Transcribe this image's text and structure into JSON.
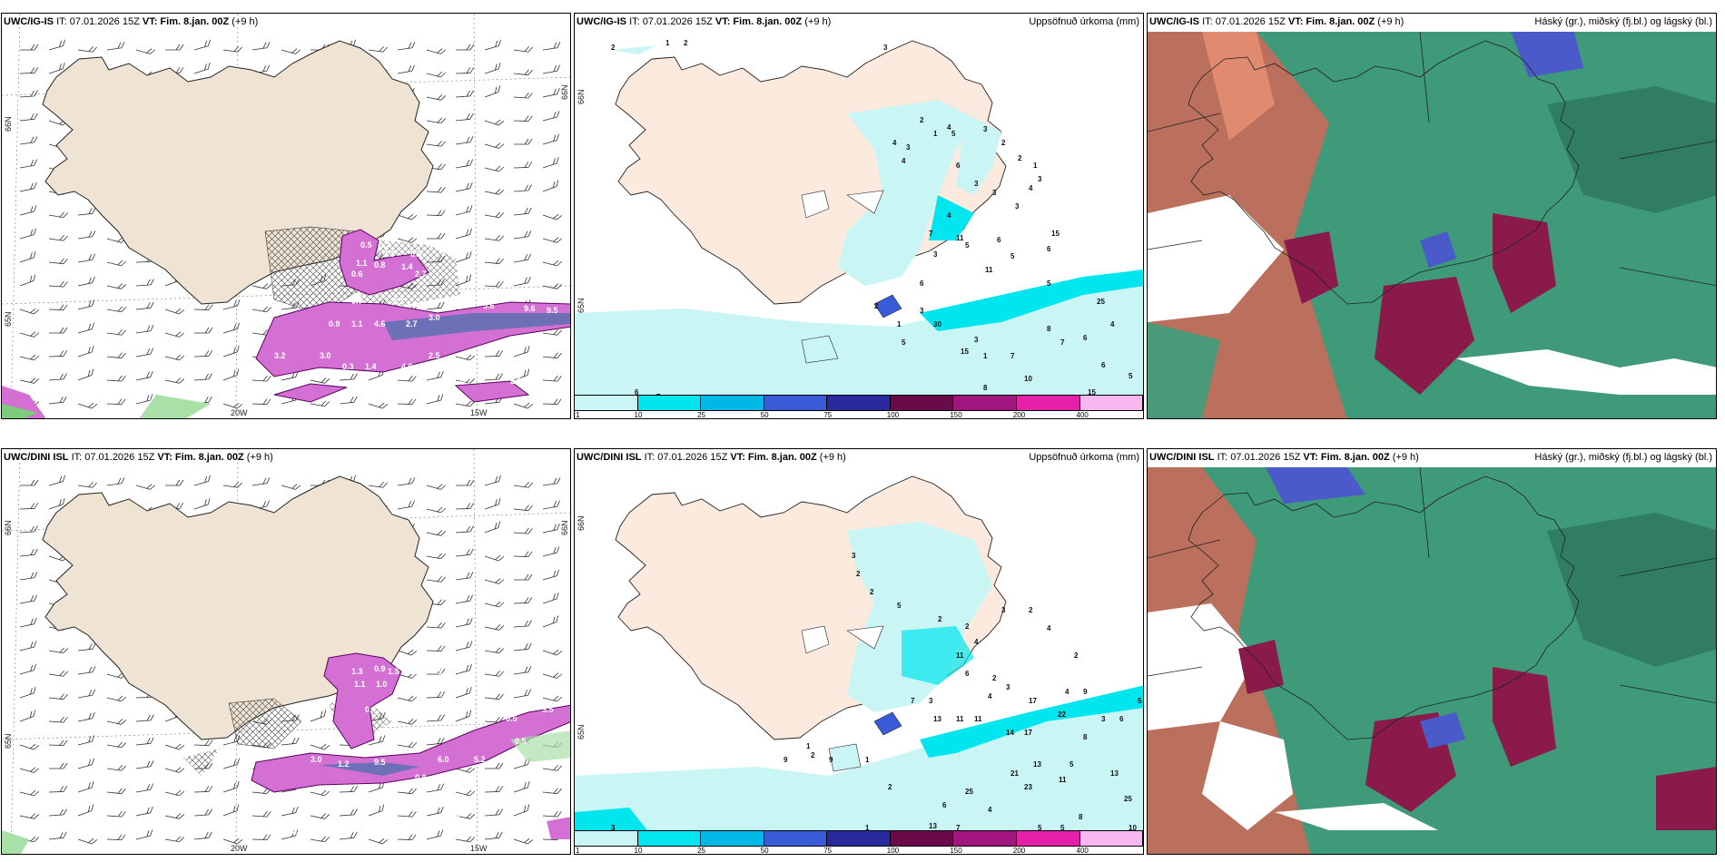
{
  "rows": [
    {
      "id": "top",
      "panels": [
        {
          "kind": "wind",
          "title_left": "UWC/IG-IS",
          "it": "IT: 07.01.2026 15Z",
          "vt_label": "VT:",
          "vt_value": "Fim. 8.jan. 00Z",
          "lead": "(+9 h)",
          "right_title": "",
          "lon_labels": [
            "20W",
            "15W"
          ],
          "lat_labels": [
            "66N",
            "65N"
          ],
          "values": [
            "0.5",
            "0.7",
            "2.3",
            "0.9",
            "1.1",
            "0.8",
            "1.4",
            "0.6",
            "2.7",
            "0.7",
            "2.2",
            "0.9",
            "1.1",
            "4.6",
            "2.7",
            "3.0",
            "5.6",
            "9.6",
            "9.5",
            "3.2",
            "3.0",
            "0.3",
            "1.4",
            "4.0",
            "2.5",
            "0.7",
            "2.9",
            "0.6"
          ]
        },
        {
          "kind": "precip",
          "title_left": "UWC/IG-IS",
          "it": "IT: 07.01.2026 15Z",
          "vt_label": "VT:",
          "vt_value": "Fim. 8.jan. 00Z",
          "lead": "(+9 h)",
          "right_title": "Uppsöfnuð úrkoma (mm)",
          "lat_labels": [
            "66N",
            "65N"
          ],
          "colorbar": {
            "labels": [
              "1",
              "10",
              "25",
              "50",
              "75",
              "100",
              "150",
              "200",
              "400"
            ],
            "colors": [
              "#c9f5f5",
              "#00e5ee",
              "#00b8e6",
              "#3a5bd8",
              "#2a2a9e",
              "#6a0a4a",
              "#a1157e",
              "#e51fa8",
              "#f7b8f0"
            ]
          },
          "values": [
            "2",
            "1",
            "2",
            "3",
            "2",
            "1",
            "4",
            "4",
            "3",
            "4",
            "3",
            "2",
            "2",
            "1",
            "3",
            "6",
            "3",
            "3",
            "4",
            "3",
            "4",
            "7",
            "11",
            "3",
            "5",
            "6",
            "15",
            "6",
            "5",
            "11",
            "6",
            "5",
            "25",
            "8",
            "30",
            "3",
            "7",
            "7",
            "6",
            "4",
            "6",
            "5",
            "8",
            "10",
            "15",
            "6",
            "7",
            "5",
            "15",
            "1",
            "3",
            "1",
            "2",
            "5"
          ]
        },
        {
          "kind": "cloud",
          "title_left": "UWC/IG-IS",
          "it": "IT: 07.01.2026 15Z",
          "vt_label": "VT:",
          "vt_value": "Fim. 8.jan. 00Z",
          "lead": "(+9 h)",
          "right_title": "Háský (gr.), miðský (fj.bl.) og lágský (bl.)"
        }
      ]
    },
    {
      "id": "bottom",
      "panels": [
        {
          "kind": "wind",
          "title_left": "UWC/DINI ISL",
          "it": "IT: 07.01.2026 15Z",
          "vt_label": "VT:",
          "vt_value": "Fim. 8.jan. 00Z",
          "lead": "(+9 h)",
          "right_title": "",
          "lon_labels": [
            "20W",
            "15W"
          ],
          "lat_labels": [
            "66N",
            "65N"
          ],
          "values": [
            "1.3",
            "0.9",
            "1.5",
            "1.0",
            "1.1",
            "1.1",
            "1.0",
            "1.4",
            "0.7",
            "3.5",
            "0.5",
            "3.0",
            "1.2",
            "9.5",
            "6.0",
            "5.2",
            "0.8",
            "6.7",
            "3.6",
            "0.6",
            "0.5",
            "0.8",
            "0.6",
            "0.9",
            "0.9",
            "-1.3",
            "0.5"
          ]
        },
        {
          "kind": "precip",
          "title_left": "UWC/DINI ISL",
          "it": "IT: 07.01.2026 15Z",
          "vt_label": "VT:",
          "vt_value": "Fim. 8.jan. 00Z",
          "lead": "(+9 h)",
          "right_title": "Uppsöfnuð úrkoma (mm)",
          "lat_labels": [
            "66N",
            "65N"
          ],
          "colorbar": {
            "labels": [
              "1",
              "10",
              "25",
              "50",
              "75",
              "100",
              "150",
              "200",
              "400"
            ],
            "colors": [
              "#c9f5f5",
              "#00e5ee",
              "#00b8e6",
              "#3a5bd8",
              "#2a2a9e",
              "#6a0a4a",
              "#a1157e",
              "#e51fa8",
              "#f7b8f0"
            ]
          },
          "values": [
            "3",
            "2",
            "2",
            "5",
            "2",
            "2",
            "3",
            "2",
            "4",
            "2",
            "4",
            "11",
            "6",
            "2",
            "3",
            "3",
            "4",
            "4",
            "9",
            "3",
            "1",
            "2",
            "7",
            "13",
            "11",
            "11",
            "17",
            "22",
            "6",
            "7",
            "5",
            "8",
            "17",
            "14",
            "5",
            "13",
            "21",
            "25",
            "23",
            "11",
            "13",
            "25",
            "8",
            "10",
            "5",
            "5",
            "4",
            "7",
            "13",
            "6",
            "1",
            "3",
            "9",
            "2",
            "1",
            "9"
          ]
        },
        {
          "kind": "cloud",
          "title_left": "UWC/DINI ISL",
          "it": "IT: 07.01.2026 15Z",
          "vt_label": "VT:",
          "vt_value": "Fim. 8.jan. 00Z",
          "lead": "(+9 h)",
          "right_title": "Háský (gr.), miðský (fj.bl.) og lágský (bl.)"
        }
      ]
    }
  ]
}
